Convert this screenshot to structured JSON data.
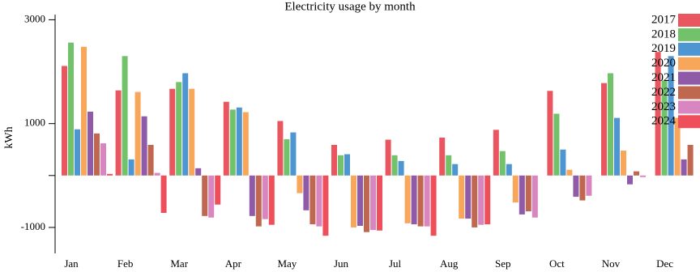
{
  "chart_data": {
    "type": "bar",
    "title": "Electricity usage by month",
    "y_label": "kWh",
    "categories": [
      "Jan",
      "Feb",
      "Mar",
      "Apr",
      "May",
      "Jun",
      "Jul",
      "Aug",
      "Sep",
      "Oct",
      "Nov",
      "Dec"
    ],
    "ylim": [
      -1500,
      3100
    ],
    "yticks": [
      -1000,
      1000,
      3000
    ],
    "series": [
      {
        "name": "2017",
        "color": "#e9565f",
        "values": [
          2110,
          1640,
          1670,
          1420,
          1050,
          590,
          690,
          730,
          880,
          1630,
          1780,
          2380
        ]
      },
      {
        "name": "2018",
        "color": "#72c26b",
        "values": [
          2560,
          2300,
          1800,
          1270,
          700,
          390,
          390,
          390,
          470,
          1190,
          1970,
          1830
        ]
      },
      {
        "name": "2019",
        "color": "#4e96d2",
        "values": [
          890,
          310,
          1970,
          1310,
          830,
          410,
          280,
          220,
          220,
          500,
          1110,
          2300
        ]
      },
      {
        "name": "2020",
        "color": "#f7a65a",
        "values": [
          2480,
          1610,
          1670,
          1220,
          -340,
          -1000,
          -920,
          -830,
          -520,
          110,
          480,
          1110
        ]
      },
      {
        "name": "2021",
        "color": "#8f5aa8",
        "values": [
          1230,
          1140,
          140,
          -780,
          -670,
          -970,
          -940,
          -830,
          -750,
          -410,
          -170,
          310
        ]
      },
      {
        "name": "2022",
        "color": "#c0674f",
        "values": [
          810,
          590,
          -780,
          -980,
          -940,
          -1090,
          -980,
          -1000,
          -690,
          -480,
          80,
          590
        ]
      },
      {
        "name": "2023",
        "color": "#d985c0",
        "values": [
          620,
          50,
          -810,
          -840,
          -980,
          -1050,
          -980,
          -950,
          -810,
          -390,
          -30,
          0
        ]
      },
      {
        "name": "2024",
        "color": "#ef4f5a",
        "values": [
          30,
          -720,
          -560,
          -950,
          -1160,
          -1060,
          -1160,
          -940,
          0,
          0,
          0,
          0
        ]
      }
    ]
  }
}
